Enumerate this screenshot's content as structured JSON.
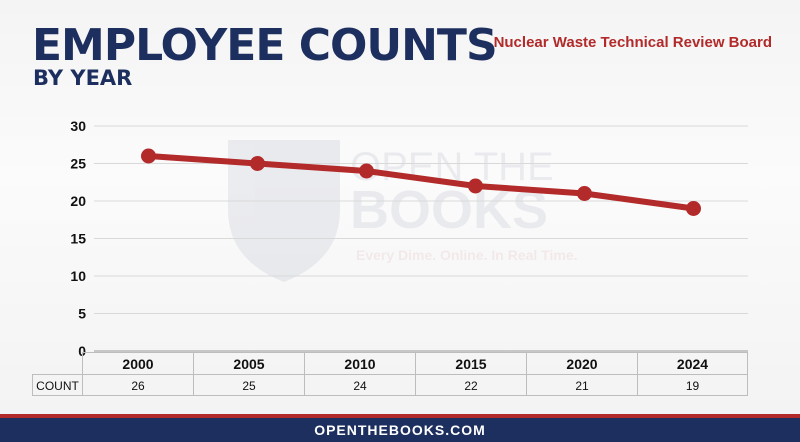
{
  "header": {
    "title": "EMPLOYEE COUNTS",
    "subtitle": "BY YEAR",
    "agency": "Nuclear Waste Technical Review Board"
  },
  "watermark": {
    "line1": "OPEN THE",
    "line2": "BOOKS",
    "tagline": "Every Dime. Online. In Real Time."
  },
  "chart_data": {
    "type": "line",
    "categories": [
      "2000",
      "2005",
      "2010",
      "2015",
      "2020",
      "2024"
    ],
    "series": [
      {
        "name": "COUNT",
        "values": [
          26,
          25,
          24,
          22,
          21,
          19
        ]
      }
    ],
    "ylim": [
      0,
      30
    ],
    "yticks": [
      0,
      5,
      10,
      15,
      20,
      25,
      30
    ],
    "title": "EMPLOYEE COUNTS",
    "xlabel": "",
    "ylabel": "",
    "grid": true,
    "line_color": "#b22a2a"
  },
  "table": {
    "row_label": "COUNT"
  },
  "footer": {
    "text": "OPENTHEBOOKS.COM"
  },
  "colors": {
    "navy": "#1c2f5e",
    "red": "#b22a2a"
  }
}
